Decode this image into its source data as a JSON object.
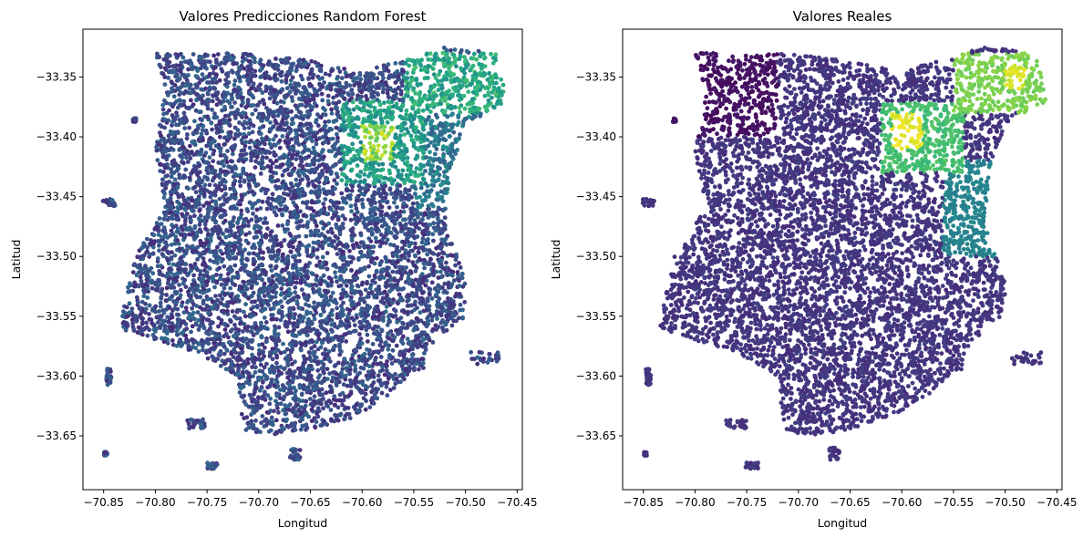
{
  "chart_data": [
    {
      "type": "scatter",
      "title": "Valores Predicciones Random Forest",
      "xlabel": "Longitud",
      "ylabel": "Latitud",
      "xlim": [
        -70.87,
        -70.445
      ],
      "ylim": [
        -33.695,
        -33.31
      ],
      "xticks": [
        -70.85,
        -70.8,
        -70.75,
        -70.7,
        -70.65,
        -70.6,
        -70.55,
        -70.5,
        -70.45
      ],
      "xtick_labels": [
        "−70.85",
        "−70.80",
        "−70.75",
        "−70.70",
        "−70.65",
        "−70.60",
        "−70.55",
        "−70.50",
        "−70.45"
      ],
      "yticks": [
        -33.35,
        -33.4,
        -33.45,
        -33.5,
        -33.55,
        -33.6,
        -33.65
      ],
      "ytick_labels": [
        "−33.35",
        "−33.40",
        "−33.45",
        "−33.50",
        "−33.55",
        "−33.60",
        "−33.65"
      ],
      "colormap": "viridis",
      "grid": false,
      "regions": [
        {
          "x": [
            -70.62,
            -70.54
          ],
          "y": [
            -33.44,
            -33.37
          ],
          "level": 0.55
        },
        {
          "x": [
            -70.6,
            -70.57
          ],
          "y": [
            -33.42,
            -33.39
          ],
          "level": 0.85
        },
        {
          "x": [
            -70.56,
            -70.46
          ],
          "y": [
            -33.38,
            -33.33
          ],
          "level": 0.6
        },
        {
          "x": [
            -70.55,
            -70.48
          ],
          "y": [
            -33.46,
            -33.38
          ],
          "level": 0.4
        }
      ]
    },
    {
      "type": "scatter",
      "title": "Valores Reales",
      "xlabel": "Longitud",
      "ylabel": "Latitud",
      "xlim": [
        -70.87,
        -70.445
      ],
      "ylim": [
        -33.695,
        -33.31
      ],
      "xticks": [
        -70.85,
        -70.8,
        -70.75,
        -70.7,
        -70.65,
        -70.6,
        -70.55,
        -70.5,
        -70.45
      ],
      "xtick_labels": [
        "−70.85",
        "−70.80",
        "−70.75",
        "−70.70",
        "−70.65",
        "−70.60",
        "−70.55",
        "−70.50",
        "−70.45"
      ],
      "yticks": [
        -33.35,
        -33.4,
        -33.45,
        -33.5,
        -33.55,
        -33.6,
        -33.65
      ],
      "ytick_labels": [
        "−33.35",
        "−33.40",
        "−33.45",
        "−33.50",
        "−33.55",
        "−33.60",
        "−33.65"
      ],
      "colormap": "viridis",
      "grid": false,
      "regions": [
        {
          "x": [
            -70.62,
            -70.54
          ],
          "y": [
            -33.43,
            -33.37
          ],
          "level": 0.7
        },
        {
          "x": [
            -70.61,
            -70.58
          ],
          "y": [
            -33.41,
            -33.38
          ],
          "level": 0.97
        },
        {
          "x": [
            -70.55,
            -70.46
          ],
          "y": [
            -33.38,
            -33.33
          ],
          "level": 0.8
        },
        {
          "x": [
            -70.5,
            -70.48
          ],
          "y": [
            -33.36,
            -33.34
          ],
          "level": 0.95
        },
        {
          "x": [
            -70.56,
            -70.5
          ],
          "y": [
            -33.5,
            -33.42
          ],
          "level": 0.45
        }
      ]
    }
  ]
}
